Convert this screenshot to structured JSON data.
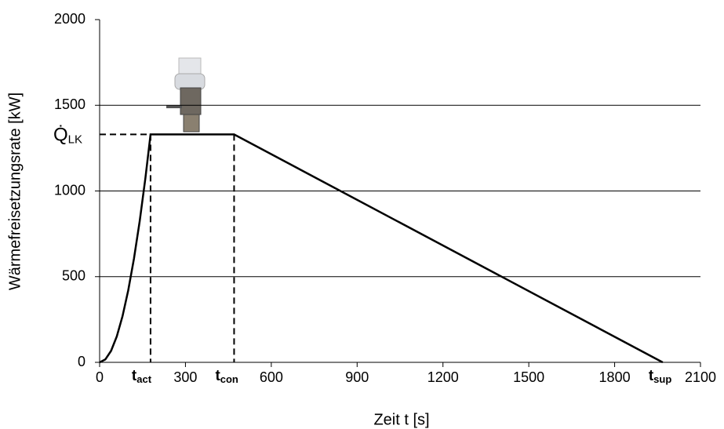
{
  "chart_data": {
    "type": "line",
    "xlabel": "Zeit t [s]",
    "ylabel": "Wärmefreisetzungsrate [kW]",
    "series": [
      {
        "name": "Wärmefreisetzungsrate",
        "color": "#000000",
        "x": [
          0,
          20,
          40,
          60,
          80,
          100,
          120,
          140,
          160,
          178,
          470,
          1968
        ],
        "values": [
          0,
          17,
          67,
          151,
          269,
          420,
          605,
          823,
          1075,
          1330,
          1330,
          0
        ]
      }
    ],
    "xlim": [
      0,
      2100
    ],
    "xticks": [
      0,
      300,
      600,
      900,
      1200,
      1500,
      1800,
      2100
    ],
    "ylim": [
      0,
      2000
    ],
    "yticks": [
      0,
      500,
      1000,
      1500,
      2000
    ],
    "grid": true,
    "annotations": [
      {
        "text": "Q̇",
        "sub": "LK"
      },
      {
        "text": "t",
        "sub": "act"
      },
      {
        "text": "t",
        "sub": "con"
      },
      {
        "text": "t",
        "sub": "sup"
      }
    ]
  }
}
